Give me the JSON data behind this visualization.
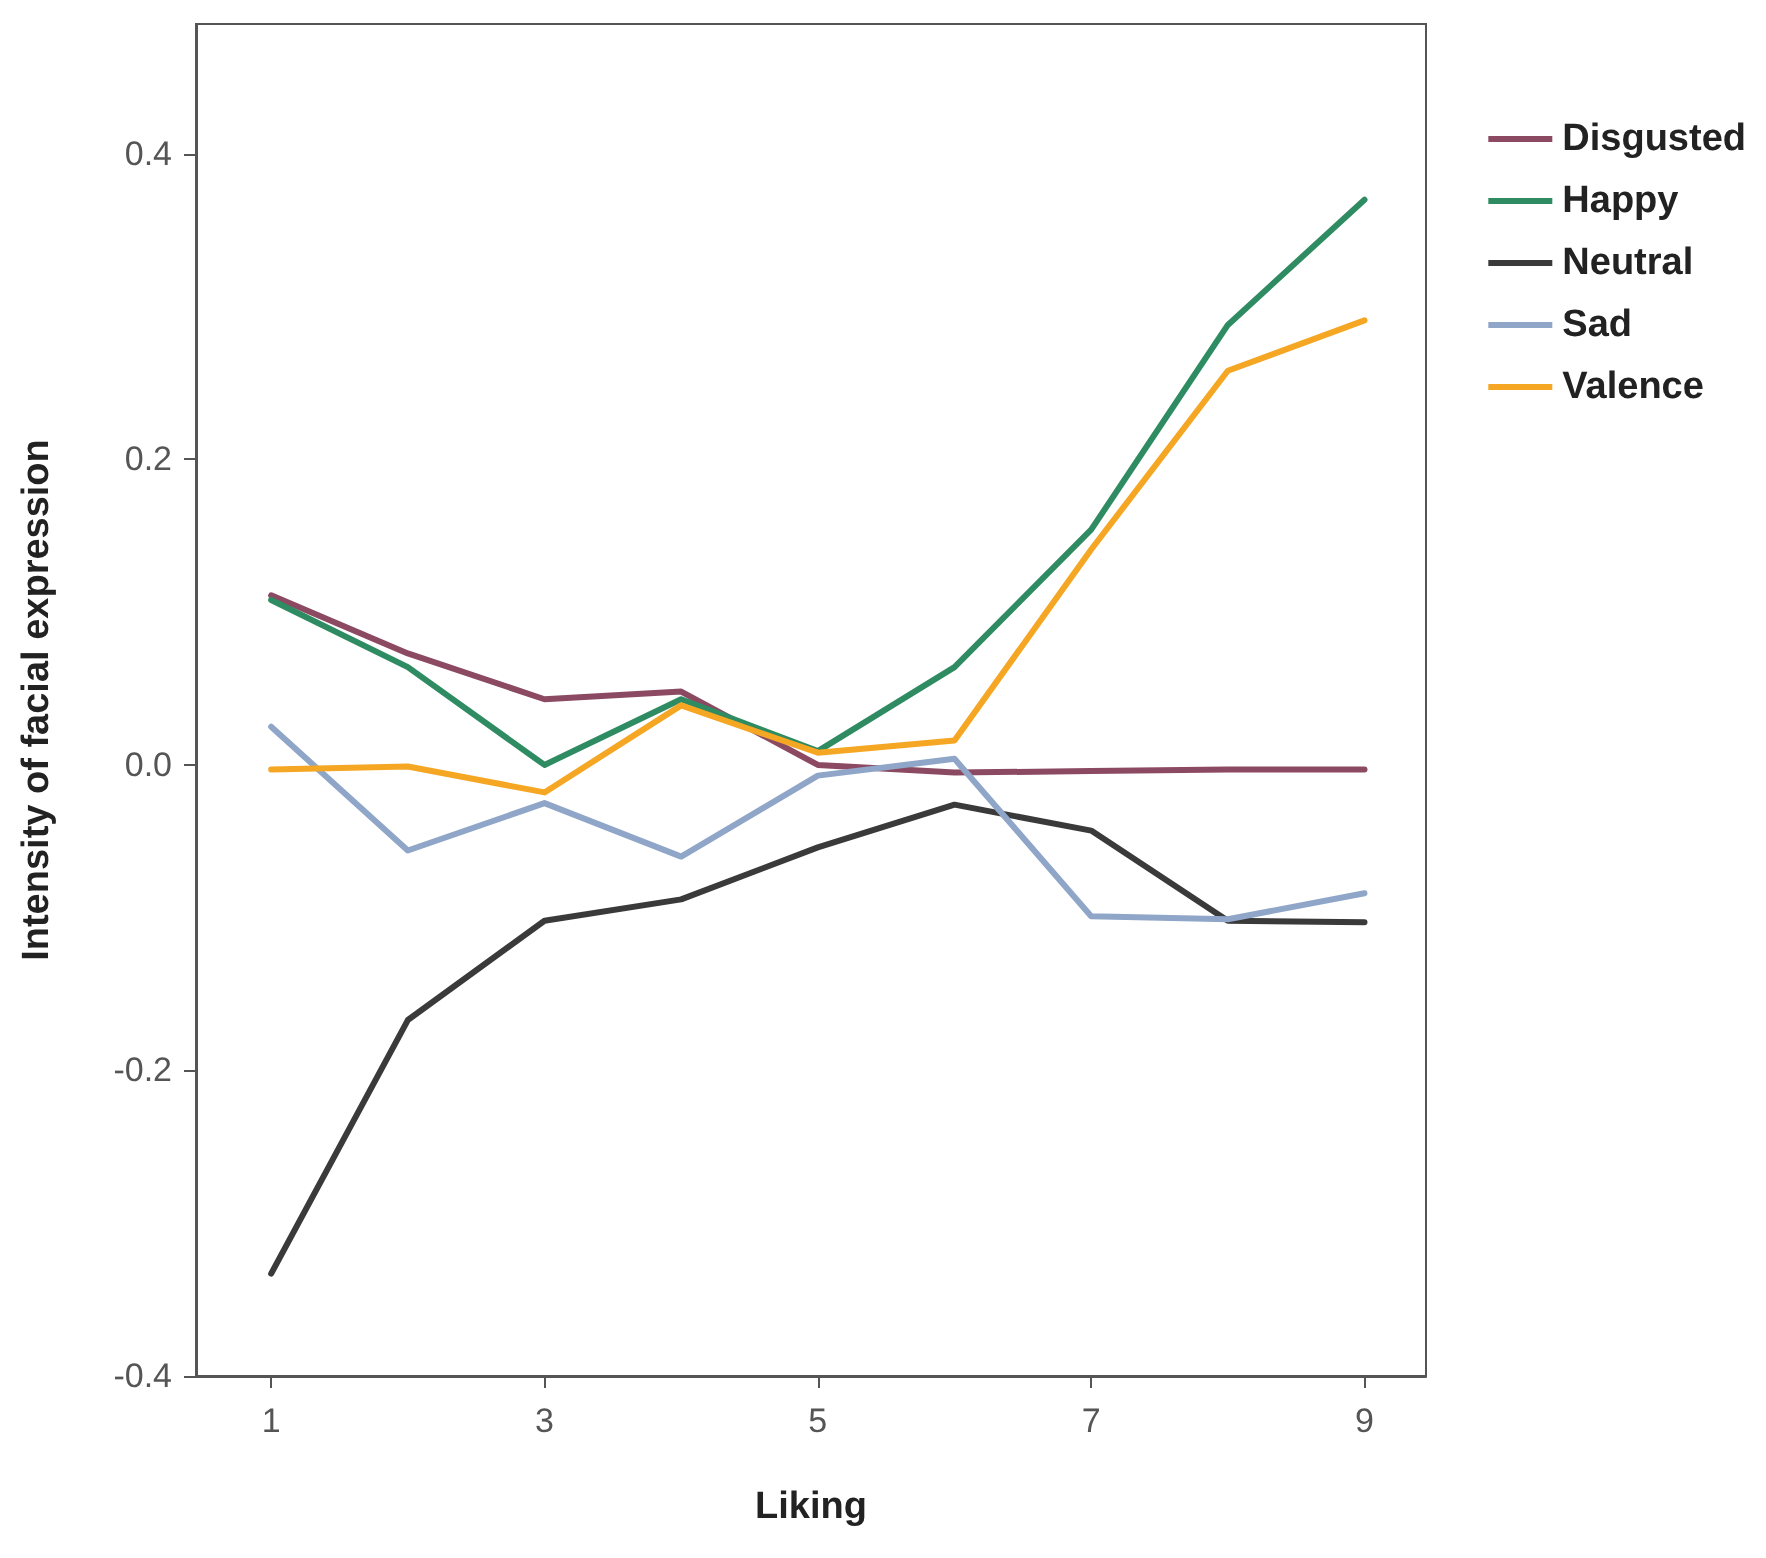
{
  "chart_data": {
    "type": "line",
    "xlabel": "Liking",
    "ylabel": "Intensity of facial expression",
    "x": [
      1,
      2,
      3,
      4,
      5,
      6,
      7,
      8,
      9
    ],
    "series": [
      {
        "name": "Disgusted",
        "color": "#8b4a62",
        "values": [
          0.111,
          0.073,
          0.043,
          0.048,
          0.0,
          -0.005,
          -0.004,
          -0.003,
          -0.003
        ]
      },
      {
        "name": "Happy",
        "color": "#2e8b62",
        "values": [
          0.108,
          0.064,
          0.0,
          0.043,
          0.009,
          0.064,
          0.154,
          0.288,
          0.37
        ]
      },
      {
        "name": "Neutral",
        "color": "#3a3a3a",
        "values": [
          -0.333,
          -0.167,
          -0.102,
          -0.088,
          -0.054,
          -0.026,
          -0.043,
          -0.102,
          -0.103
        ]
      },
      {
        "name": "Sad",
        "color": "#8fa6c8",
        "values": [
          0.025,
          -0.056,
          -0.025,
          -0.06,
          -0.007,
          0.004,
          -0.099,
          -0.101,
          -0.084
        ]
      },
      {
        "name": "Valence",
        "color": "#f5a623",
        "values": [
          -0.003,
          -0.001,
          -0.018,
          0.039,
          0.008,
          0.016,
          0.141,
          0.258,
          0.291
        ]
      }
    ],
    "xlim": [
      0.45,
      9.45
    ],
    "xticks": [
      1,
      3,
      5,
      7,
      9
    ],
    "ylim": [
      -0.4,
      0.485
    ],
    "yticks": [
      {
        "value": -0.4,
        "label": "-0.4"
      },
      {
        "value": -0.2,
        "label": "-0.2"
      },
      {
        "value": 0,
        "label": "0.0"
      },
      {
        "value": 0.2,
        "label": "0.2"
      },
      {
        "value": 0.4,
        "label": "0.4"
      }
    ],
    "grid": false,
    "legend": "right",
    "marker": "none",
    "line_style": "solid"
  }
}
